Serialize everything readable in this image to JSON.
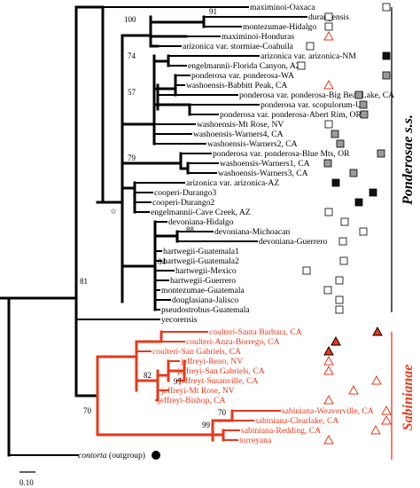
{
  "colors": {
    "black": "#000000",
    "sabinianae": "#e8391a",
    "marker_dark": "#111111",
    "marker_gray": "#9a9a9a",
    "marker_orange": "#e8391a"
  },
  "taxa": [
    {
      "label": "maximinoi-Oaxaca",
      "color": "black",
      "marker": "open-square"
    },
    {
      "label": "durangensis",
      "color": "black",
      "marker": "open-square"
    },
    {
      "label": "montezumae-Hidalgo",
      "color": "black",
      "marker": "open-square"
    },
    {
      "label": "maximinoi-Honduras",
      "color": "black",
      "marker": "open-triangle"
    },
    {
      "label": "arizonica var. stormiae-Coahuila",
      "color": "black",
      "marker": "open-square"
    },
    {
      "label": "arizonica var. arizonica-NM",
      "color": "black",
      "marker": "filled-square"
    },
    {
      "label": "engelmannii-Florida Canyon, AZ",
      "color": "black",
      "marker": "open-square"
    },
    {
      "label": "ponderosa var. ponderosa-WA",
      "color": "black",
      "marker": "gray-square"
    },
    {
      "label": "washoensis-Babbitt Peak, CA",
      "color": "black",
      "marker": "open-triangle"
    },
    {
      "label": "ponderosa var. ponderosa-Big Bear Lake, CA",
      "color": "black",
      "marker": "gray-square"
    },
    {
      "label": "ponderosa var. scopulorum-UT",
      "color": "black",
      "marker": "gray-square"
    },
    {
      "label": "ponderosa var. ponderosa-Abert Rim, OR",
      "color": "black",
      "marker": "gray-square"
    },
    {
      "label": "washoensis-Mt Rose, NV",
      "color": "black",
      "marker": "open-square"
    },
    {
      "label": "washoensis-Warners4, CA",
      "color": "black",
      "marker": "gray-square"
    },
    {
      "label": "washoensis-Warners2, CA",
      "color": "black",
      "marker": "gray-square"
    },
    {
      "label": "ponderosa var. ponderosa-Blue Mts, OR",
      "color": "black",
      "marker": "gray-square"
    },
    {
      "label": "washoensis-Warners1, CA",
      "color": "black",
      "marker": "gray-square"
    },
    {
      "label": "washoensis-Warners3, CA",
      "color": "black",
      "marker": "gray-square"
    },
    {
      "label": "arizonica var. arizonica-AZ",
      "color": "black",
      "marker": "filled-square"
    },
    {
      "label": "cooperi-Durango3",
      "color": "black",
      "marker": "filled-square"
    },
    {
      "label": "cooperi-Durango2",
      "color": "black",
      "marker": "filled-square"
    },
    {
      "label": "engelmannii-Cave Creek, AZ",
      "color": "black",
      "marker": "open-square"
    },
    {
      "label": "devoniana-Hidalgo",
      "color": "black",
      "marker": "open-square"
    },
    {
      "label": "devoniana-Michoacan",
      "color": "black",
      "marker": "open-square"
    },
    {
      "label": "devoniana-Guerrero",
      "color": "black",
      "marker": "open-square"
    },
    {
      "label": "hartwegii-Guatemala1",
      "color": "black",
      "marker": "none"
    },
    {
      "label": "hartwegii-Guatemala2",
      "color": "black",
      "marker": "open-square"
    },
    {
      "label": "hartwegii-Mexico",
      "color": "black",
      "marker": "open-square"
    },
    {
      "label": "hartwegii-Guerrero",
      "color": "black",
      "marker": "open-square"
    },
    {
      "label": "montezumae-Guatemala",
      "color": "black",
      "marker": "open-square"
    },
    {
      "label": "douglasiana-Jalisco",
      "color": "black",
      "marker": "open-square"
    },
    {
      "label": "pseudostrobus-Guatemala",
      "color": "black",
      "marker": "open-square"
    },
    {
      "label": "yecorensis",
      "color": "black",
      "marker": "none"
    },
    {
      "label": "coulteri-Santa Barbara, CA",
      "color": "sabinianae",
      "marker": "filled-triangle"
    },
    {
      "label": "coulteri-Anza-Borrego, CA",
      "color": "sabinianae",
      "marker": "filled-triangle"
    },
    {
      "label": "coulteri-San Gabriels, CA",
      "color": "sabinianae",
      "marker": "filled-triangle"
    },
    {
      "label": "jeffreyi-Reno, NV",
      "color": "sabinianae",
      "marker": "open-triangle"
    },
    {
      "label": "jeffreyi-San Gabriels, CA",
      "color": "sabinianae",
      "marker": "open-triangle"
    },
    {
      "label": "jeffreyi-Susanville, CA",
      "color": "sabinianae",
      "marker": "open-triangle"
    },
    {
      "label": "jeffreyi-Mt Rose, NV",
      "color": "sabinianae",
      "marker": "open-triangle"
    },
    {
      "label": "jeffreyi-Bishop, CA",
      "color": "sabinianae",
      "marker": "open-triangle"
    },
    {
      "label": "sabiniana-Weaverville, CA",
      "color": "sabinianae",
      "marker": "open-triangle"
    },
    {
      "label": "sabiniana-Clearlake, CA",
      "color": "sabinianae",
      "marker": "open-triangle"
    },
    {
      "label": "sabiniana-Redding, CA",
      "color": "sabinianae",
      "marker": "open-triangle"
    },
    {
      "label": "torreyana",
      "color": "sabinianae",
      "marker": "open-triangle"
    }
  ],
  "outgroup": {
    "label_italic": "contorta",
    "label_rest": " (outgroup)",
    "marker": "filled-circle"
  },
  "support_values": [
    "100",
    "91",
    "74",
    "57",
    "79",
    "88",
    "84",
    "81",
    "82",
    "97",
    "70",
    "99",
    "70"
  ],
  "star_symbol": "☆",
  "groups": {
    "ponderosae": "Ponderosae s.s.",
    "sabinianae": "Sabinianae"
  },
  "scale": {
    "label": "0.10"
  }
}
